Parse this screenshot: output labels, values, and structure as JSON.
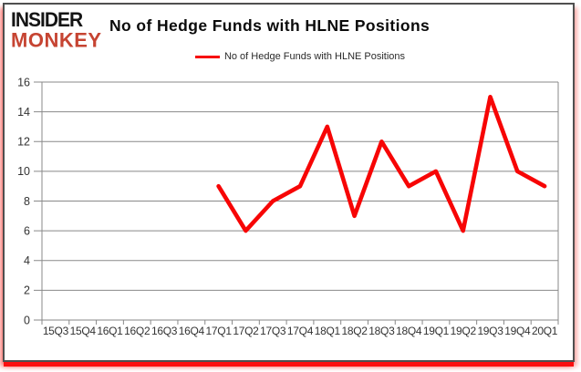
{
  "brand": {
    "line1": "INSIDER",
    "line2": "MONKEY"
  },
  "header": {
    "title": "No of Hedge Funds with HLNE Positions"
  },
  "legend": {
    "label": "No of Hedge Funds with HLNE Positions"
  },
  "colors": {
    "series_red": "#f70505",
    "grid_gray": "#898989",
    "axis_text": "#333333",
    "title_text": "#0b0b0b",
    "brand_black": "#151515",
    "brand_red": "#c64432",
    "frame_border": "#4f4f4f",
    "shadow_red": "#fb0f0f"
  },
  "chart_data": {
    "type": "line",
    "title": "No of Hedge Funds with HLNE Positions",
    "categories": [
      "15Q3",
      "15Q4",
      "16Q1",
      "16Q2",
      "16Q3",
      "16Q4",
      "17Q1",
      "17Q2",
      "17Q3",
      "17Q4",
      "18Q1",
      "18Q2",
      "18Q3",
      "18Q4",
      "19Q1",
      "19Q2",
      "19Q3",
      "19Q4",
      "20Q1"
    ],
    "series": [
      {
        "name": "No of Hedge Funds with HLNE Positions",
        "values": [
          null,
          null,
          null,
          null,
          null,
          null,
          9,
          6,
          8,
          9,
          13,
          7,
          12,
          9,
          10,
          6,
          15,
          10,
          9
        ]
      }
    ],
    "xlabel": "",
    "ylabel": "",
    "ylim": [
      0,
      16
    ],
    "ytick_step": 2,
    "grid": true,
    "legend_position": "top-center"
  }
}
